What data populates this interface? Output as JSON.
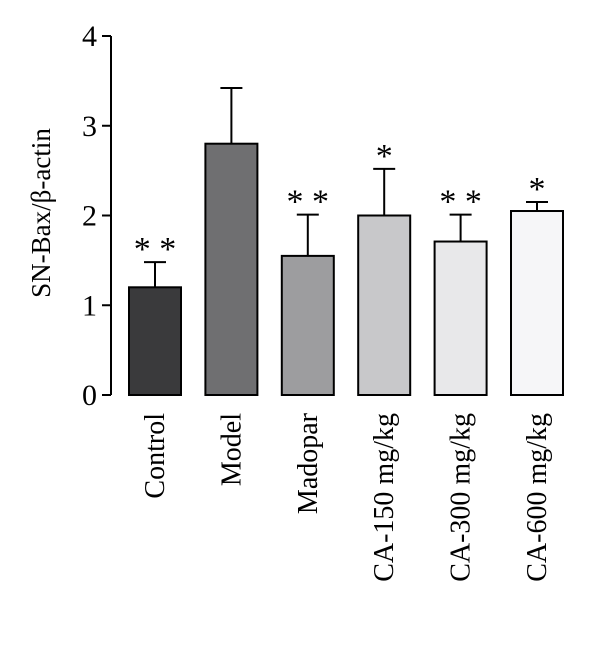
{
  "chart_data": {
    "type": "bar",
    "title": "",
    "xlabel": "",
    "ylabel": "SN-Bax/β-actin",
    "ylim": [
      0,
      4
    ],
    "yticks": [
      0,
      1,
      2,
      3,
      4
    ],
    "grid": false,
    "categories": [
      "Control",
      "Model",
      "Madopar",
      "CA-150 mg/kg",
      "CA-300 mg/kg",
      "CA-600 mg/kg"
    ],
    "values": [
      1.2,
      2.8,
      1.55,
      2.0,
      1.71,
      2.05
    ],
    "errors": [
      0.28,
      0.62,
      0.46,
      0.52,
      0.3,
      0.1
    ],
    "significance": [
      "* *",
      "",
      "* *",
      "*",
      "* *",
      "*"
    ],
    "colors": [
      "#3a3a3c",
      "#6f6f71",
      "#9d9d9f",
      "#c8c8ca",
      "#e8e8ea",
      "#f6f6f8"
    ]
  }
}
